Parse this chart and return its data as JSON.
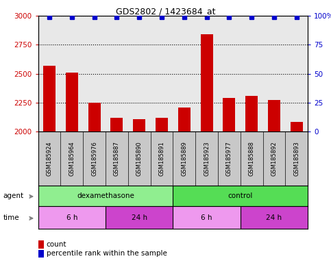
{
  "title": "GDS2802 / 1423684_at",
  "samples": [
    "GSM185924",
    "GSM185964",
    "GSM185976",
    "GSM185887",
    "GSM185890",
    "GSM185891",
    "GSM185889",
    "GSM185923",
    "GSM185977",
    "GSM185888",
    "GSM185892",
    "GSM185893"
  ],
  "counts": [
    2570,
    2510,
    2250,
    2120,
    2105,
    2120,
    2210,
    2840,
    2290,
    2305,
    2270,
    2080
  ],
  "percentile_ranks": [
    99,
    99,
    99,
    99,
    99,
    99,
    99,
    99,
    99,
    99,
    99,
    99
  ],
  "bar_color": "#cc0000",
  "dot_color": "#0000cc",
  "ylim_left": [
    2000,
    3000
  ],
  "ylim_right": [
    0,
    100
  ],
  "yticks_left": [
    2000,
    2250,
    2500,
    2750,
    3000
  ],
  "yticks_right": [
    0,
    25,
    50,
    75,
    100
  ],
  "tick_label_color_left": "#cc0000",
  "tick_label_color_right": "#0000cc",
  "plot_bg_color": "#e8e8e8",
  "sample_row_bg": "#c8c8c8",
  "agent_color_dex": "#90EE90",
  "agent_color_ctrl": "#55DD55",
  "time_color_6h": "#EE99EE",
  "time_color_24h": "#CC44CC",
  "legend_count_color": "#cc0000",
  "legend_pct_color": "#0000cc",
  "agent_divider": 5.5,
  "time_dividers": [
    2.5,
    5.5,
    8.5
  ],
  "n_samples": 12
}
